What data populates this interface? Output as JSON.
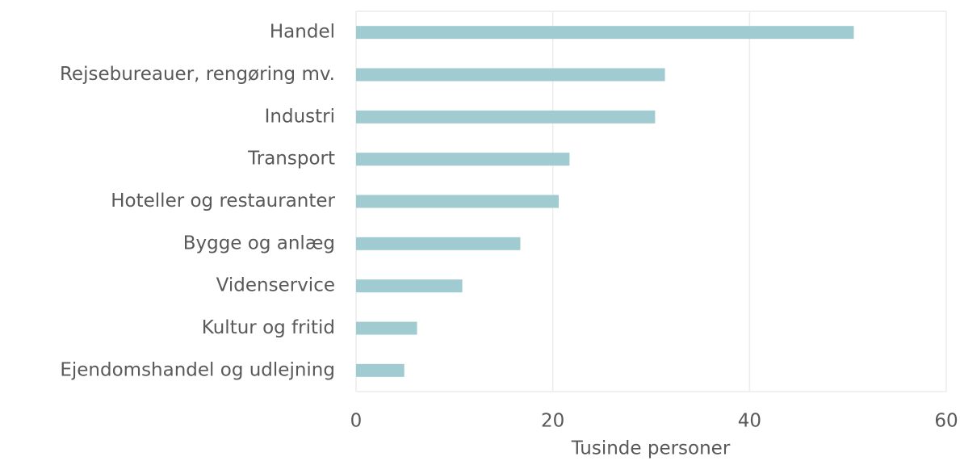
{
  "chart_data": {
    "type": "bar",
    "orientation": "horizontal",
    "xlabel": "Tusinde personer",
    "categories": [
      "Handel",
      "Rejsebureauer, rengøring mv.",
      "Industri",
      "Transport",
      "Hoteller og restauranter",
      "Bygge og anlæg",
      "Videnservice",
      "Kultur og fritid",
      "Ejendomshandel og udlejning"
    ],
    "values": [
      50.6,
      31.4,
      30.4,
      21.7,
      20.6,
      16.7,
      10.8,
      6.2,
      4.9
    ],
    "color": "#a0cbd0",
    "xlim": [
      0,
      60
    ],
    "xticks": [
      0,
      20,
      40,
      60
    ],
    "grid": true
  }
}
